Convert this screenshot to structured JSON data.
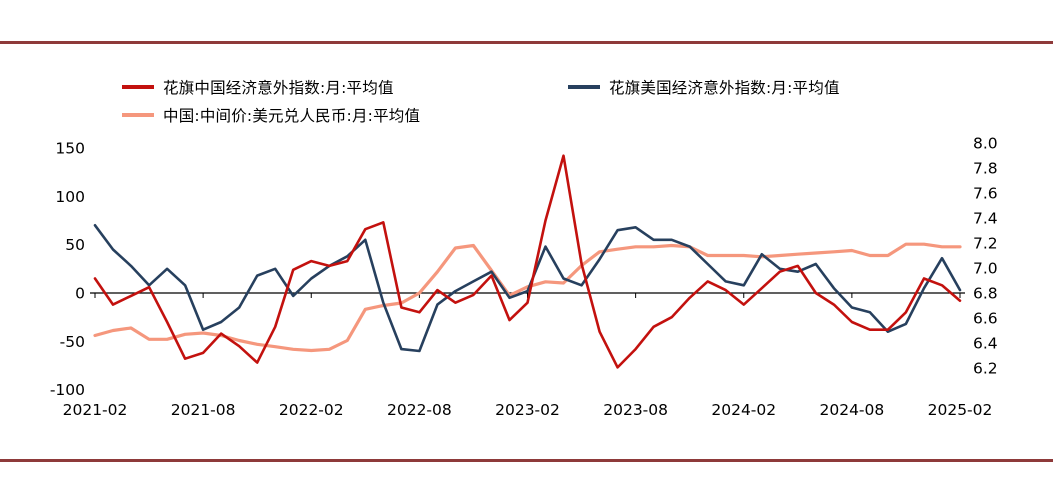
{
  "page": {
    "background": "#ffffff",
    "border_line_color": "#8e3a3a"
  },
  "legend": [
    {
      "id": "china",
      "label": "花旗中国经济意外指数:月:平均值",
      "color": "#c3110e"
    },
    {
      "id": "us",
      "label": "花旗美国经济意外指数:月:平均值",
      "color": "#27405e"
    },
    {
      "id": "cny",
      "label": "中国:中间价:美元兑人民币:月:平均值",
      "color": "#f5977d"
    }
  ],
  "chart_data": {
    "type": "line",
    "title": "",
    "x": [
      "2021-02",
      "2021-03",
      "2021-04",
      "2021-05",
      "2021-06",
      "2021-07",
      "2021-08",
      "2021-09",
      "2021-10",
      "2021-11",
      "2021-12",
      "2022-01",
      "2022-02",
      "2022-03",
      "2022-04",
      "2022-05",
      "2022-06",
      "2022-07",
      "2022-08",
      "2022-09",
      "2022-10",
      "2022-11",
      "2022-12",
      "2023-01",
      "2023-02",
      "2023-03",
      "2023-04",
      "2023-05",
      "2023-06",
      "2023-07",
      "2023-08",
      "2023-09",
      "2023-10",
      "2023-11",
      "2023-12",
      "2024-01",
      "2024-02",
      "2024-03",
      "2024-04",
      "2024-05",
      "2024-06",
      "2024-07",
      "2024-08",
      "2024-09",
      "2024-10",
      "2024-11",
      "2024-12",
      "2025-01",
      "2025-02"
    ],
    "x_ticks": [
      "2021-02",
      "2021-08",
      "2022-02",
      "2022-08",
      "2023-02",
      "2023-08",
      "2024-02",
      "2024-08",
      "2025-02"
    ],
    "left_axis": {
      "tick_labels": [
        "150",
        "100",
        "50",
        "0",
        "-50",
        "-100"
      ],
      "tick_values": [
        150,
        100,
        50,
        0,
        -50,
        -100
      ],
      "range": [
        -100,
        150
      ]
    },
    "right_axis": {
      "tick_labels": [
        "8.0",
        "7.8",
        "7.6",
        "7.4",
        "7.2",
        "7.0",
        "6.8",
        "6.6",
        "6.4",
        "6.2"
      ],
      "tick_values": [
        8.0,
        7.8,
        7.6,
        7.4,
        7.2,
        7.0,
        6.8,
        6.6,
        6.4,
        6.2
      ],
      "range": [
        6.2,
        8.0
      ]
    },
    "grid": false,
    "legend_position": "top",
    "series": [
      {
        "id": "china",
        "name": "花旗中国经济意外指数:月:平均值",
        "axis": "left",
        "color": "#c3110e",
        "values": [
          15,
          -12,
          -3,
          6,
          -30,
          -68,
          -62,
          -42,
          -55,
          -72,
          -35,
          24,
          33,
          28,
          33,
          66,
          73,
          -15,
          -20,
          3,
          -10,
          -2,
          18,
          -28,
          -10,
          75,
          142,
          30,
          -40,
          -77,
          -58,
          -35,
          -25,
          -5,
          12,
          3,
          -12,
          5,
          22,
          28,
          0,
          -12,
          -30,
          -38,
          -38,
          -20,
          15,
          8,
          -8
        ]
      },
      {
        "id": "us",
        "name": "花旗美国经济意外指数:月:平均值",
        "axis": "left",
        "color": "#27405e",
        "values": [
          70,
          45,
          28,
          8,
          25,
          8,
          -38,
          -30,
          -15,
          18,
          25,
          -3,
          15,
          28,
          38,
          55,
          -10,
          -58,
          -60,
          -12,
          2,
          12,
          22,
          -5,
          2,
          48,
          15,
          8,
          35,
          65,
          68,
          55,
          55,
          48,
          30,
          12,
          8,
          40,
          25,
          22,
          30,
          5,
          -15,
          -20,
          -40,
          -32,
          5,
          36,
          3
        ]
      },
      {
        "id": "cny",
        "name": "中国:中间价:美元兑人民币:月:平均值",
        "axis": "right",
        "color": "#f5977d",
        "values": [
          6.46,
          6.5,
          6.52,
          6.43,
          6.43,
          6.47,
          6.48,
          6.46,
          6.42,
          6.39,
          6.37,
          6.35,
          6.34,
          6.35,
          6.42,
          6.67,
          6.7,
          6.72,
          6.8,
          6.97,
          7.16,
          7.18,
          6.98,
          6.78,
          6.85,
          6.89,
          6.88,
          7.02,
          7.13,
          7.15,
          7.17,
          7.17,
          7.18,
          7.17,
          7.1,
          7.1,
          7.1,
          7.09,
          7.1,
          7.11,
          7.12,
          7.13,
          7.14,
          7.1,
          7.1,
          7.19,
          7.19,
          7.17,
          7.17
        ]
      }
    ]
  }
}
